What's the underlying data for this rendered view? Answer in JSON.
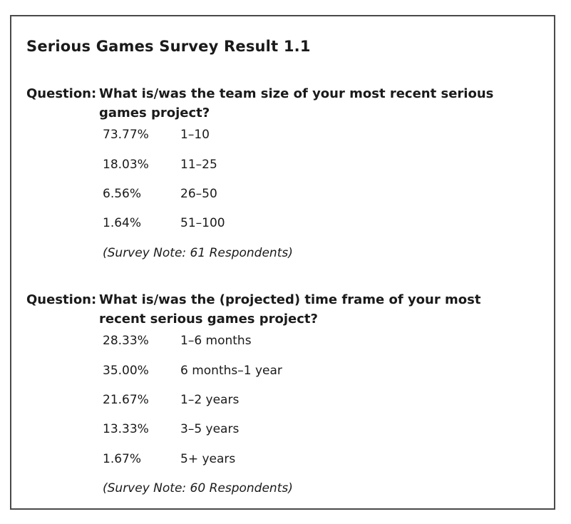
{
  "title": "Serious Games Survey Result 1.1",
  "questions": [
    {
      "prefix": "Question:",
      "text_line1": "What is/was the team size of your most recent serious",
      "text_line2": "games project?",
      "results": [
        {
          "percent": "73.77%",
          "label": "1–10"
        },
        {
          "percent": "18.03%",
          "label": "11–25"
        },
        {
          "percent": "6.56%",
          "label": "26–50"
        },
        {
          "percent": "1.64%",
          "label": "51–100"
        }
      ],
      "note": "(Survey Note: 61 Respondents)"
    },
    {
      "prefix": "Question:",
      "text_line1": "What is/was the (projected) time frame of your most",
      "text_line2": "recent serious games project?",
      "results": [
        {
          "percent": "28.33%",
          "label": "1–6 months"
        },
        {
          "percent": "35.00%",
          "label": "6 months–1 year"
        },
        {
          "percent": "21.67%",
          "label": "1–2 years"
        },
        {
          "percent": "13.33%",
          "label": "3–5 years"
        },
        {
          "percent": "1.67%",
          "label": "5+ years"
        }
      ],
      "note": "(Survey Note: 60 Respondents)"
    }
  ]
}
